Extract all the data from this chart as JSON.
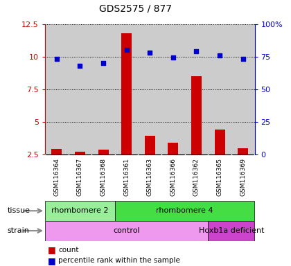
{
  "title": "GDS2575 / 877",
  "samples": [
    "GSM116364",
    "GSM116367",
    "GSM116368",
    "GSM116361",
    "GSM116363",
    "GSM116366",
    "GSM116362",
    "GSM116365",
    "GSM116369"
  ],
  "count_values": [
    2.9,
    2.7,
    2.85,
    11.8,
    3.9,
    3.4,
    8.5,
    4.4,
    2.95
  ],
  "percentile_values": [
    73,
    68,
    70,
    80,
    78,
    74,
    79,
    76,
    73
  ],
  "ylim_left": [
    2.5,
    12.5
  ],
  "ylim_right": [
    0,
    100
  ],
  "yticks_left": [
    2.5,
    5.0,
    7.5,
    10.0,
    12.5
  ],
  "yticks_right": [
    0,
    25,
    50,
    75,
    100
  ],
  "bar_color": "#cc0000",
  "dot_color": "#0000cc",
  "col_bg_color": "#cccccc",
  "plot_bg_color": "#ffffff",
  "tissue_groups": [
    {
      "label": "rhombomere 2",
      "start": 0,
      "end": 3,
      "color": "#99ee99"
    },
    {
      "label": "rhombomere 4",
      "start": 3,
      "end": 9,
      "color": "#44dd44"
    }
  ],
  "strain_groups": [
    {
      "label": "control",
      "start": 0,
      "end": 7,
      "color": "#ee99ee"
    },
    {
      "label": "Hoxb1a deficient",
      "start": 7,
      "end": 9,
      "color": "#cc44cc"
    }
  ],
  "legend_count_label": "count",
  "legend_pct_label": "percentile rank within the sample",
  "title_color": "#000000",
  "left_axis_color": "#cc0000",
  "right_axis_color": "#0000cc",
  "row_label_tissue": "tissue",
  "row_label_strain": "strain"
}
